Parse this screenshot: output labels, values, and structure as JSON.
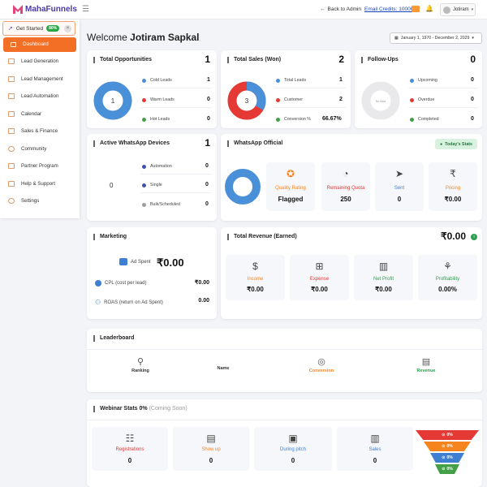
{
  "app": {
    "logo": "MahaFunnels",
    "back": "Back to Admin",
    "credits": "Email Credits: 10000",
    "user": "Jotiram"
  },
  "sidebar": {
    "get_started": "Get Started",
    "badge": "80%",
    "active": "Dashboard",
    "items": [
      "Lead Generation",
      "Lead Management",
      "Lead Automation",
      "Calendar",
      "Sales & Finance",
      "Community",
      "Partner Program",
      "Help & Support",
      "Settings"
    ]
  },
  "welcome": {
    "prefix": "Welcome",
    "name": "Jotiram Sapkal"
  },
  "date_range": "January 1, 1970 - December 2, 2029",
  "opportunities": {
    "title": "Total Opportunities",
    "value": "1",
    "center": "1",
    "legend": [
      {
        "label": "Cold Leads",
        "value": "1",
        "color": "#4a90d9"
      },
      {
        "label": "Warm Leads",
        "value": "0",
        "color": "#e53935"
      },
      {
        "label": "Hot Leads",
        "value": "0",
        "color": "#43a047"
      }
    ]
  },
  "sales": {
    "title": "Total Sales (Won)",
    "value": "2",
    "center": "3",
    "legend": [
      {
        "label": "Total Leads",
        "value": "1",
        "color": "#4a90d9"
      },
      {
        "label": "Customer",
        "value": "2",
        "color": "#e53935"
      },
      {
        "label": "Conversion %",
        "value": "66.67%",
        "color": "#43a047"
      }
    ]
  },
  "followups": {
    "title": "Follow-Ups",
    "value": "0",
    "center": "No data",
    "legend": [
      {
        "label": "Upcoming",
        "value": "0",
        "color": "#4a90d9"
      },
      {
        "label": "Overdue",
        "value": "0",
        "color": "#e53935"
      },
      {
        "label": "Completed",
        "value": "0",
        "color": "#43a047"
      }
    ]
  },
  "whatsapp_devices": {
    "title": "Active WhatsApp Devices",
    "value": "1",
    "center": "0",
    "legend": [
      {
        "label": "Automation",
        "value": "0",
        "color": "#3f51b5"
      },
      {
        "label": "Single",
        "value": "0",
        "color": "#3f51b5"
      },
      {
        "label": "Bulk/Scheduled",
        "value": "0",
        "color": "#9e9e9e"
      }
    ]
  },
  "whatsapp_official": {
    "title": "WhatsApp Official",
    "button": "Today's Stats",
    "center": "250",
    "tiles": [
      {
        "label": "Quality Rating",
        "value": "Flagged",
        "color": "#f5841f"
      },
      {
        "label": "Remaining Quota",
        "value": "250",
        "color": "#e53935"
      },
      {
        "label": "Sent",
        "value": "0",
        "color": "#3f7fd1"
      },
      {
        "label": "Pricing",
        "value": "₹0.00",
        "color": "#f5841f"
      }
    ]
  },
  "marketing": {
    "title": "Marketing",
    "ad_spent_label": "Ad Spent",
    "ad_spent": "₹0.00",
    "cpl_label": "CPL (cost per lead)",
    "cpl": "₹0.00",
    "roas_label": "ROAS (return on Ad Spent)",
    "roas": "0.00"
  },
  "revenue": {
    "title": "Total Revenue (Earned)",
    "value": "₹0.00",
    "tiles": [
      {
        "label": "Income",
        "value": "₹0.00",
        "color": "#f5841f"
      },
      {
        "label": "Expense",
        "value": "₹0.00",
        "color": "#e53935"
      },
      {
        "label": "Net Profit",
        "value": "₹0.00",
        "color": "#2e9e4f"
      },
      {
        "label": "Profitability",
        "value": "0.00%",
        "color": "#2e9e4f"
      }
    ]
  },
  "leaderboard": {
    "title": "Leaderboard",
    "cols": [
      {
        "label": "Ranking",
        "color": "#333"
      },
      {
        "label": "Name",
        "color": "#333"
      },
      {
        "label": "Conversion",
        "color": "#f5841f"
      },
      {
        "label": "Revenue",
        "color": "#2e9e4f"
      }
    ]
  },
  "webinar": {
    "title": "Webinar Stats 0%",
    "soon": "(Coming Soon)",
    "tiles": [
      {
        "label": "Registrations",
        "value": "0",
        "color": "#e53935"
      },
      {
        "label": "Show up",
        "value": "0",
        "color": "#f5841f"
      },
      {
        "label": "During pitch",
        "value": "0",
        "color": "#3f7fd1"
      },
      {
        "label": "Sales",
        "value": "0",
        "color": "#3f7fd1"
      }
    ],
    "funnel": [
      {
        "value": "0%",
        "color": "#e53935"
      },
      {
        "value": "0%",
        "color": "#f5841f"
      },
      {
        "value": "0%",
        "color": "#3f7fd1"
      },
      {
        "value": "0%",
        "color": "#43a047"
      }
    ]
  }
}
